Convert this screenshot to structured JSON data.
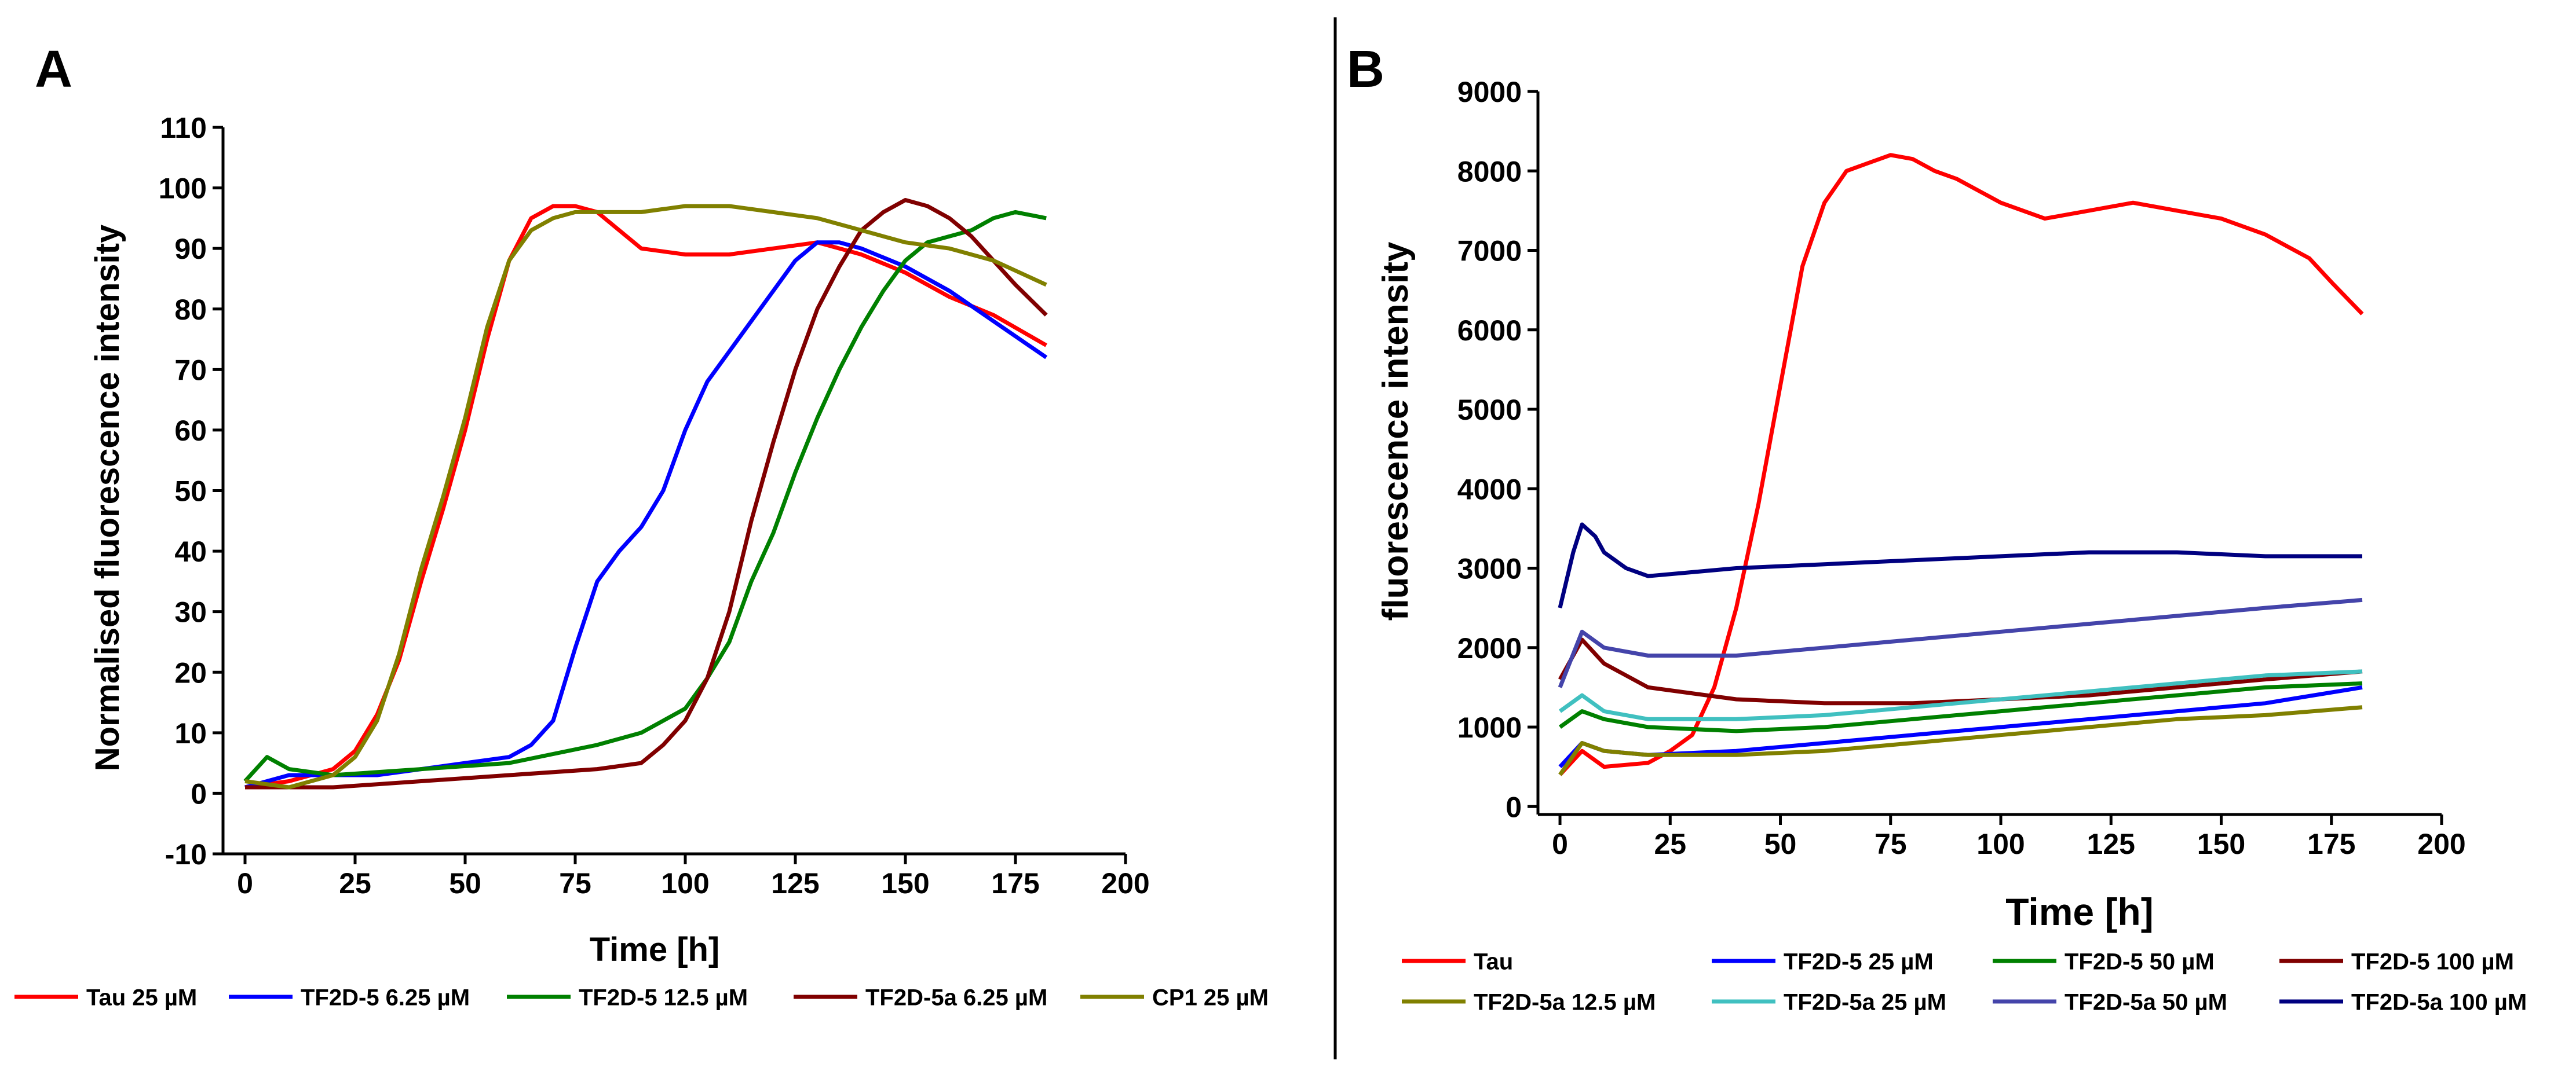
{
  "chart_data": [
    {
      "type": "line",
      "panel_label": "A",
      "xlabel": "Time [h]",
      "ylabel": "Normalised fluorescence intensity",
      "xlim": [
        -5,
        200
      ],
      "ylim": [
        -10,
        110
      ],
      "xticks": [
        0,
        25,
        50,
        75,
        100,
        125,
        150,
        175,
        200
      ],
      "yticks": [
        -10,
        0,
        10,
        20,
        30,
        40,
        50,
        60,
        70,
        80,
        90,
        100,
        110
      ],
      "grid": false,
      "legend_position": "bottom",
      "series": [
        {
          "name": "Tau 25 µM",
          "color": "#ff0000",
          "x": [
            0,
            10,
            20,
            25,
            30,
            35,
            40,
            45,
            50,
            55,
            60,
            65,
            70,
            75,
            80,
            85,
            90,
            100,
            110,
            120,
            130,
            140,
            150,
            160,
            170,
            182
          ],
          "y": [
            1,
            2,
            4,
            7,
            13,
            22,
            35,
            47,
            60,
            75,
            88,
            95,
            97,
            97,
            96,
            93,
            90,
            89,
            89,
            90,
            91,
            89,
            86,
            82,
            79,
            74
          ]
        },
        {
          "name": "TF2D-5 6.25 µM",
          "color": "#0000ff",
          "x": [
            0,
            10,
            20,
            30,
            40,
            50,
            60,
            65,
            70,
            75,
            80,
            85,
            90,
            95,
            100,
            105,
            110,
            115,
            120,
            125,
            130,
            135,
            140,
            150,
            160,
            170,
            182
          ],
          "y": [
            1,
            3,
            3,
            3,
            4,
            5,
            6,
            8,
            12,
            24,
            35,
            40,
            44,
            50,
            60,
            68,
            73,
            78,
            83,
            88,
            91,
            91,
            90,
            87,
            83,
            78,
            72
          ]
        },
        {
          "name": "TF2D-5 12.5 µM",
          "color": "#008000",
          "x": [
            0,
            5,
            10,
            20,
            40,
            60,
            80,
            90,
            100,
            105,
            110,
            115,
            120,
            125,
            130,
            135,
            140,
            145,
            150,
            155,
            160,
            165,
            170,
            175,
            182
          ],
          "y": [
            2,
            6,
            4,
            3,
            4,
            5,
            8,
            10,
            14,
            19,
            25,
            35,
            43,
            53,
            62,
            70,
            77,
            83,
            88,
            91,
            92,
            93,
            95,
            96,
            95
          ]
        },
        {
          "name": "TF2D-5a 6.25 µM",
          "color": "#800000",
          "x": [
            0,
            10,
            20,
            40,
            60,
            80,
            90,
            95,
            100,
            105,
            110,
            115,
            120,
            125,
            130,
            135,
            140,
            145,
            150,
            155,
            160,
            165,
            170,
            175,
            182
          ],
          "y": [
            1,
            1,
            1,
            2,
            3,
            4,
            5,
            8,
            12,
            19,
            30,
            45,
            58,
            70,
            80,
            87,
            93,
            96,
            98,
            97,
            95,
            92,
            88,
            84,
            79
          ]
        },
        {
          "name": "CP1 25 µM",
          "color": "#808000",
          "x": [
            0,
            10,
            20,
            25,
            30,
            35,
            40,
            45,
            50,
            55,
            60,
            65,
            70,
            75,
            80,
            90,
            100,
            110,
            120,
            130,
            140,
            150,
            160,
            170,
            182
          ],
          "y": [
            2,
            1,
            3,
            6,
            12,
            23,
            37,
            49,
            62,
            77,
            88,
            93,
            95,
            96,
            96,
            96,
            97,
            97,
            96,
            95,
            93,
            91,
            90,
            88,
            84
          ]
        }
      ],
      "legend_labels": [
        "Tau 25 µM",
        "TF2D-5 6.25 µM",
        "TF2D-5 12.5 µM",
        "TF2D-5a 6.25 µM",
        "CP1 25 µM"
      ]
    },
    {
      "type": "line",
      "panel_label": "B",
      "xlabel": "Time [h]",
      "ylabel": "fluorescence intensity",
      "xlim": [
        -5,
        200
      ],
      "ylim": [
        -100,
        9000
      ],
      "xticks": [
        0,
        25,
        50,
        75,
        100,
        125,
        150,
        175,
        200
      ],
      "yticks": [
        0,
        1000,
        2000,
        3000,
        4000,
        5000,
        6000,
        7000,
        8000,
        9000
      ],
      "grid": false,
      "legend_position": "bottom",
      "series": [
        {
          "name": "Tau",
          "color": "#ff0000",
          "x": [
            0,
            5,
            10,
            20,
            25,
            30,
            35,
            40,
            45,
            50,
            55,
            60,
            65,
            70,
            75,
            80,
            85,
            90,
            100,
            110,
            120,
            130,
            140,
            150,
            160,
            170,
            175,
            182
          ],
          "y": [
            400,
            700,
            500,
            550,
            700,
            900,
            1500,
            2500,
            3800,
            5300,
            6800,
            7600,
            8000,
            8100,
            8200,
            8150,
            8000,
            7900,
            7600,
            7400,
            7500,
            7600,
            7500,
            7400,
            7200,
            6900,
            6600,
            6200
          ]
        },
        {
          "name": "TF2D-5 25 µM",
          "color": "#0000ff",
          "x": [
            0,
            5,
            10,
            20,
            40,
            60,
            80,
            100,
            120,
            140,
            160,
            182
          ],
          "y": [
            500,
            800,
            700,
            650,
            700,
            800,
            900,
            1000,
            1100,
            1200,
            1300,
            1500
          ]
        },
        {
          "name": "TF2D-5 50 µM",
          "color": "#008000",
          "x": [
            0,
            5,
            10,
            20,
            40,
            60,
            80,
            100,
            120,
            140,
            160,
            182
          ],
          "y": [
            1000,
            1200,
            1100,
            1000,
            950,
            1000,
            1100,
            1200,
            1300,
            1400,
            1500,
            1550
          ]
        },
        {
          "name": "TF2D-5 100 µM",
          "color": "#800000",
          "x": [
            0,
            5,
            10,
            20,
            40,
            60,
            80,
            100,
            120,
            140,
            160,
            182
          ],
          "y": [
            1600,
            2100,
            1800,
            1500,
            1350,
            1300,
            1300,
            1350,
            1400,
            1500,
            1600,
            1700
          ]
        },
        {
          "name": "TF2D-5a 12.5 µM",
          "color": "#808000",
          "x": [
            0,
            5,
            10,
            20,
            40,
            60,
            80,
            100,
            120,
            140,
            160,
            182
          ],
          "y": [
            400,
            800,
            700,
            650,
            650,
            700,
            800,
            900,
            1000,
            1100,
            1150,
            1250
          ]
        },
        {
          "name": "TF2D-5a 25 µM",
          "color": "#40c0c0",
          "x": [
            0,
            5,
            10,
            20,
            40,
            60,
            80,
            100,
            120,
            140,
            160,
            182
          ],
          "y": [
            1200,
            1400,
            1200,
            1100,
            1100,
            1150,
            1250,
            1350,
            1450,
            1550,
            1650,
            1700
          ]
        },
        {
          "name": "TF2D-5a 50 µM",
          "color": "#4444aa",
          "x": [
            0,
            5,
            10,
            20,
            40,
            60,
            80,
            100,
            120,
            140,
            160,
            182
          ],
          "y": [
            1500,
            2200,
            2000,
            1900,
            1900,
            2000,
            2100,
            2200,
            2300,
            2400,
            2500,
            2600
          ]
        },
        {
          "name": "TF2D-5a 100 µM",
          "color": "#000080",
          "x": [
            0,
            3,
            5,
            8,
            10,
            15,
            20,
            30,
            40,
            60,
            80,
            100,
            120,
            140,
            160,
            182
          ],
          "y": [
            2500,
            3200,
            3550,
            3400,
            3200,
            3000,
            2900,
            2950,
            3000,
            3050,
            3100,
            3150,
            3200,
            3200,
            3150,
            3150
          ]
        }
      ],
      "legend_labels": [
        "Tau",
        "TF2D-5 25 µM",
        "TF2D-5 50 µM",
        "TF2D-5 100 µM",
        "TF2D-5a 12.5 µM",
        "TF2D-5a 25 µM",
        "TF2D-5a 50 µM",
        "TF2D-5a 100 µM"
      ]
    }
  ]
}
